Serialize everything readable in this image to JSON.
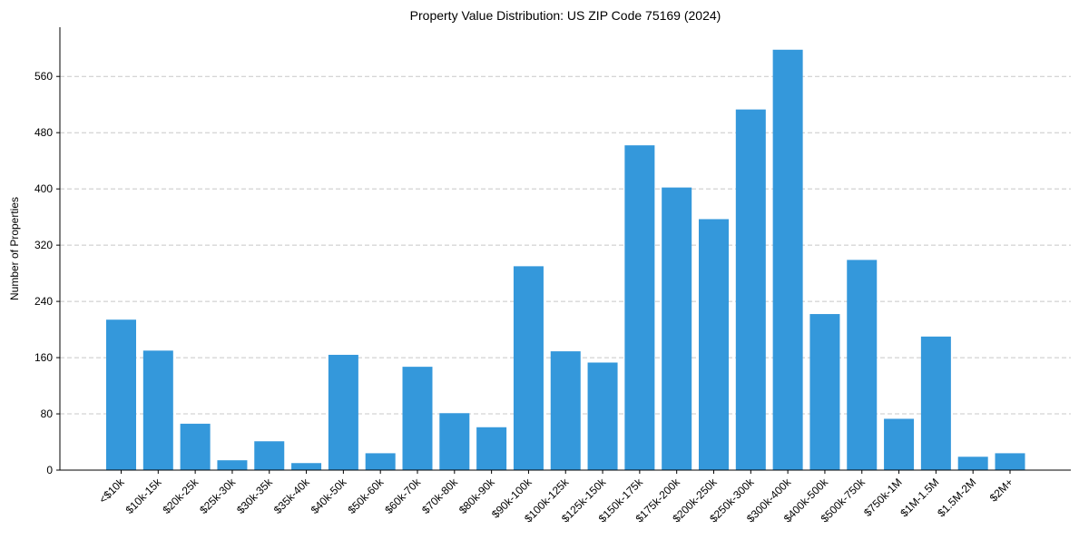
{
  "chart_data": {
    "type": "bar",
    "title": "Property Value Distribution: US ZIP Code 75169 (2024)",
    "xlabel": "",
    "ylabel": "Number of Properties",
    "categories": [
      "<$10k",
      "$10k-15k",
      "$20k-25k",
      "$25k-30k",
      "$30k-35k",
      "$35k-40k",
      "$40k-50k",
      "$50k-60k",
      "$60k-70k",
      "$70k-80k",
      "$80k-90k",
      "$90k-100k",
      "$100k-125k",
      "$125k-150k",
      "$150k-175k",
      "$175k-200k",
      "$200k-250k",
      "$250k-300k",
      "$300k-400k",
      "$400k-500k",
      "$500k-750k",
      "$750k-1M",
      "$1M-1.5M",
      "$1.5M-2M",
      "$2M+"
    ],
    "values": [
      214,
      170,
      66,
      14,
      41,
      10,
      164,
      24,
      147,
      81,
      61,
      290,
      169,
      153,
      462,
      402,
      357,
      513,
      598,
      222,
      299,
      73,
      190,
      19,
      24
    ],
    "ylim": [
      0,
      630
    ],
    "yticks": [
      0,
      80,
      160,
      240,
      320,
      400,
      480,
      560
    ],
    "grid": true,
    "bar_color": "#3498db"
  }
}
